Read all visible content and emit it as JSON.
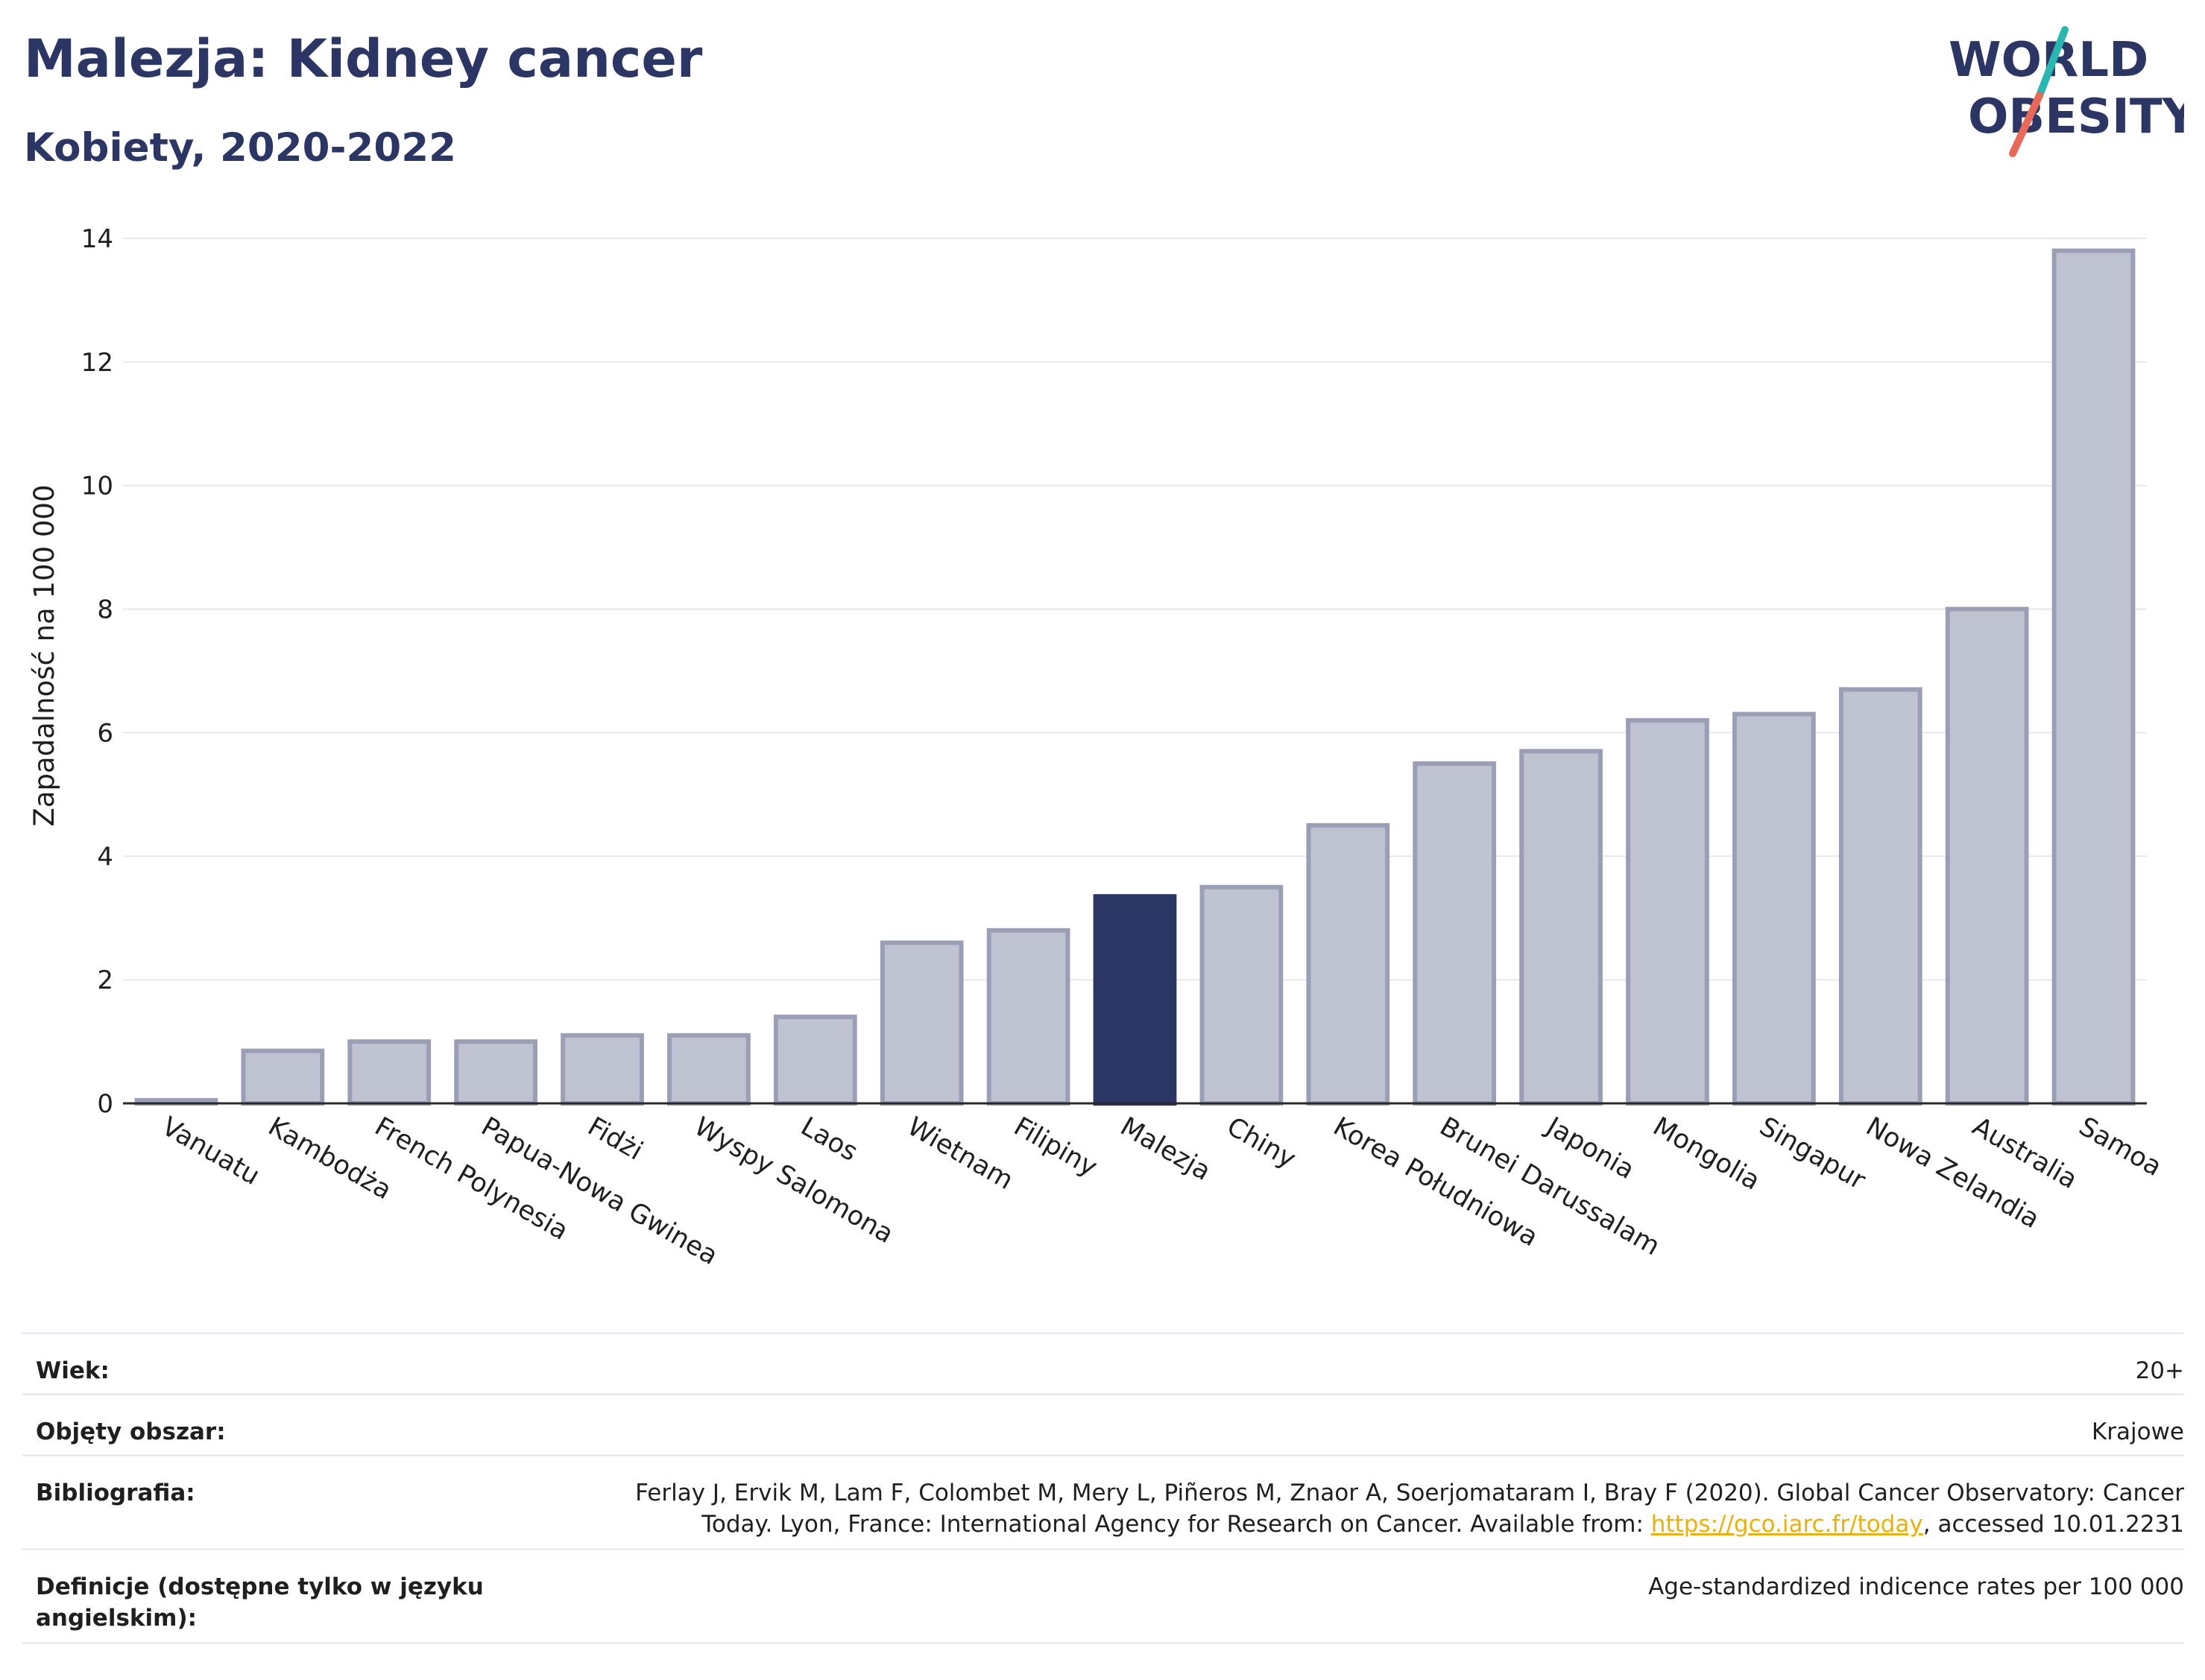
{
  "header": {
    "title": "Malezja: Kidney cancer",
    "subtitle": "Kobiety, 2020-2022"
  },
  "logo": {
    "line1": "WORLD",
    "line2": "OBESITY",
    "text_color": "#2b3664",
    "slash_top_color": "#2ab7b0",
    "slash_bottom_color": "#e8685a"
  },
  "chart_data": {
    "type": "bar",
    "ylabel": "Zapadalność na 100 000",
    "xlabel": "",
    "ylim": [
      0,
      14
    ],
    "yticks": [
      0,
      2,
      4,
      6,
      8,
      10,
      12,
      14
    ],
    "grid": true,
    "highlight": "Malezja",
    "colors": {
      "bar": "#bfc2d0",
      "bar_edge": "#9a9fb6",
      "highlight": "#2b3664"
    },
    "categories": [
      "Vanuatu",
      "Kambodża",
      "French Polynesia",
      "Papua-Nowa Gwinea",
      "Fidżi",
      "Wyspy Salomona",
      "Laos",
      "Wietnam",
      "Filipiny",
      "Malezja",
      "Chiny",
      "Korea Południowa",
      "Brunei Darussalam",
      "Japonia",
      "Mongolia",
      "Singapur",
      "Nowa Zelandia",
      "Australia",
      "Samoa"
    ],
    "values": [
      0.05,
      0.85,
      1.0,
      1.0,
      1.1,
      1.1,
      1.4,
      2.6,
      2.8,
      3.35,
      3.5,
      4.5,
      5.5,
      5.7,
      6.2,
      6.3,
      6.7,
      8.0,
      13.8
    ]
  },
  "info": {
    "rows": [
      {
        "label": "Wiek:",
        "value": "20+"
      },
      {
        "label": "Objęty obszar:",
        "value": "Krajowe"
      },
      {
        "label": "Bibliografia:",
        "value_line1": "Ferlay J, Ervik M, Lam F, Colombet M, Mery L, Piñeros M, Znaor A, Soerjomataram I, Bray F (2020). Global Cancer Observatory: Cancer",
        "value_line2_pre": "Today. Lyon, France: International Agency for Research on Cancer. Available from: ",
        "value_link": "https://gco.iarc.fr/today",
        "value_line2_post": ", accessed 10.01.2231"
      },
      {
        "label_line1": "Definicje (dostępne tylko w języku",
        "label_line2": "angielskim):",
        "value": "Age-standardized indicence rates per 100 000"
      }
    ]
  }
}
